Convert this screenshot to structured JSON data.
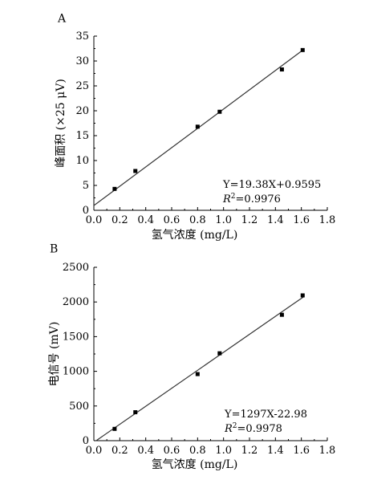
{
  "chart_data": [
    {
      "type": "scatter",
      "panel_label": "A",
      "x": [
        0.16,
        0.32,
        0.8,
        0.97,
        1.45,
        1.61
      ],
      "y": [
        4.3,
        7.9,
        16.8,
        19.8,
        28.3,
        32.2
      ],
      "fit_line": {
        "slope": 19.38,
        "intercept": 0.9595,
        "x_range": [
          0,
          1.62
        ]
      },
      "equation": "Y=19.38X+0.9595",
      "r2_value": "=0.9976",
      "xlabel": "氢气浓度 (mg/L)",
      "ylabel": "峰面积 (×25 μV)",
      "xlim": [
        0,
        1.8
      ],
      "ylim": [
        0,
        35
      ],
      "xticks": [
        "0.0",
        "0.2",
        "0.4",
        "0.6",
        "0.8",
        "1.0",
        "1.2",
        "1.4",
        "1.6",
        "1.8"
      ],
      "yticks": [
        "0",
        "5",
        "10",
        "15",
        "20",
        "25",
        "30",
        "35"
      ],
      "grid": false
    },
    {
      "type": "scatter",
      "panel_label": "B",
      "x": [
        0.16,
        0.32,
        0.8,
        0.97,
        1.45,
        1.61
      ],
      "y": [
        170,
        410,
        960,
        1260,
        1815,
        2095
      ],
      "fit_line": {
        "slope": 1297,
        "intercept": -22.98,
        "x_range": [
          0.018,
          1.62
        ]
      },
      "equation": "Y=1297X-22.98",
      "r2_value": "=0.9978",
      "xlabel": "氢气浓度 (mg/L)",
      "ylabel": "电信号 (mV)",
      "xlim": [
        0,
        1.8
      ],
      "ylim": [
        0,
        2500
      ],
      "xticks": [
        "0.0",
        "0.2",
        "0.4",
        "0.6",
        "0.8",
        "1.0",
        "1.2",
        "1.4",
        "1.6",
        "1.8"
      ],
      "yticks": [
        "0",
        "500",
        "1000",
        "1500",
        "2000",
        "2500"
      ],
      "grid": false
    }
  ],
  "colors": {
    "axis": "#000000",
    "marker": "#000000",
    "fit_line": "#333333"
  }
}
